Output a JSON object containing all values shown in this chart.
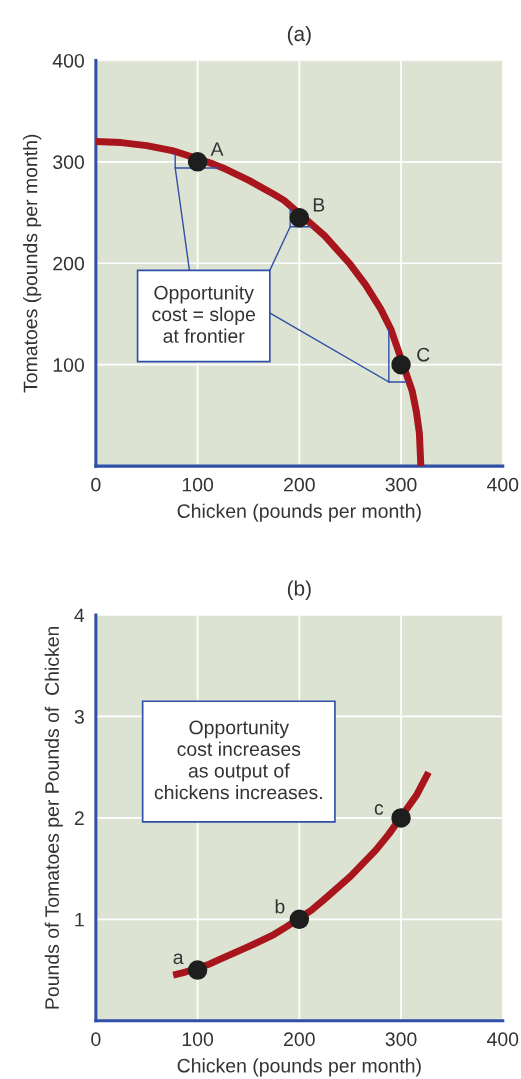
{
  "chart_data": [
    {
      "type": "line",
      "title": "(a)",
      "xlabel": "Chicken (pounds per month)",
      "ylabel": "Tomatoes (pounds per month)",
      "xlim": [
        0,
        400
      ],
      "ylim": [
        0,
        400
      ],
      "xticks": [
        0,
        100,
        200,
        300,
        400
      ],
      "yticks": [
        100,
        200,
        300,
        400
      ],
      "grid": true,
      "series": [
        {
          "color": "#a8151c",
          "x": [
            0,
            25,
            50,
            75,
            85,
            115,
            125,
            150,
            175,
            185,
            215,
            225,
            250,
            265,
            280,
            290,
            311,
            315,
            318,
            319.5
          ],
          "values": [
            320,
            319,
            316,
            311,
            308,
            298,
            294,
            282,
            268,
            262,
            236,
            227,
            199,
            179,
            155,
            135,
            74,
            54,
            33,
            0
          ],
          "marker": "none"
        },
        {
          "type": "scatter",
          "color": "#1e1e1e",
          "x": [
            100,
            200,
            300
          ],
          "values": [
            300,
            245,
            100
          ],
          "marker": "circle"
        }
      ],
      "annotations": [
        {
          "text": "A",
          "x": 100,
          "y": 300
        },
        {
          "text": "B",
          "x": 200,
          "y": 245
        },
        {
          "text": "C",
          "x": 300,
          "y": 100
        },
        {
          "text": "Opportunity\ncost = slope\nat frontier",
          "x": 191,
          "y": 236
        }
      ]
    },
    {
      "type": "line",
      "title": "(b)",
      "xlabel": "Chicken (pounds per month)",
      "ylabel": "Pounds of Tomatoes per Pounds of  Chicken",
      "xlim": [
        0,
        400
      ],
      "ylim": [
        0,
        4
      ],
      "xticks": [
        0,
        100,
        200,
        300,
        400
      ],
      "yticks": [
        1,
        2,
        3,
        4
      ],
      "grid": true,
      "series": [
        {
          "color": "#a8151c",
          "x": [
            76,
            88,
            112,
            125,
            150,
            175,
            188,
            212,
            225,
            250,
            275,
            288,
            315,
            327
          ],
          "values": [
            0.45,
            0.48,
            0.56,
            0.62,
            0.73,
            0.85,
            0.93,
            1.09,
            1.2,
            1.42,
            1.68,
            1.84,
            2.22,
            2.45
          ],
          "marker": "none"
        },
        {
          "type": "scatter",
          "color": "#1e1e1e",
          "x": [
            100,
            200,
            300
          ],
          "values": [
            0.5,
            1,
            2
          ],
          "marker": "circle"
        }
      ],
      "annotations": [
        {
          "text": "a",
          "x": 100,
          "y": 0.5
        },
        {
          "text": "b",
          "x": 200,
          "y": 1
        },
        {
          "text": "c",
          "x": 300,
          "y": 2
        },
        "Opportunity\ncost increases\nas output of\nchickens increases."
      ]
    }
  ]
}
